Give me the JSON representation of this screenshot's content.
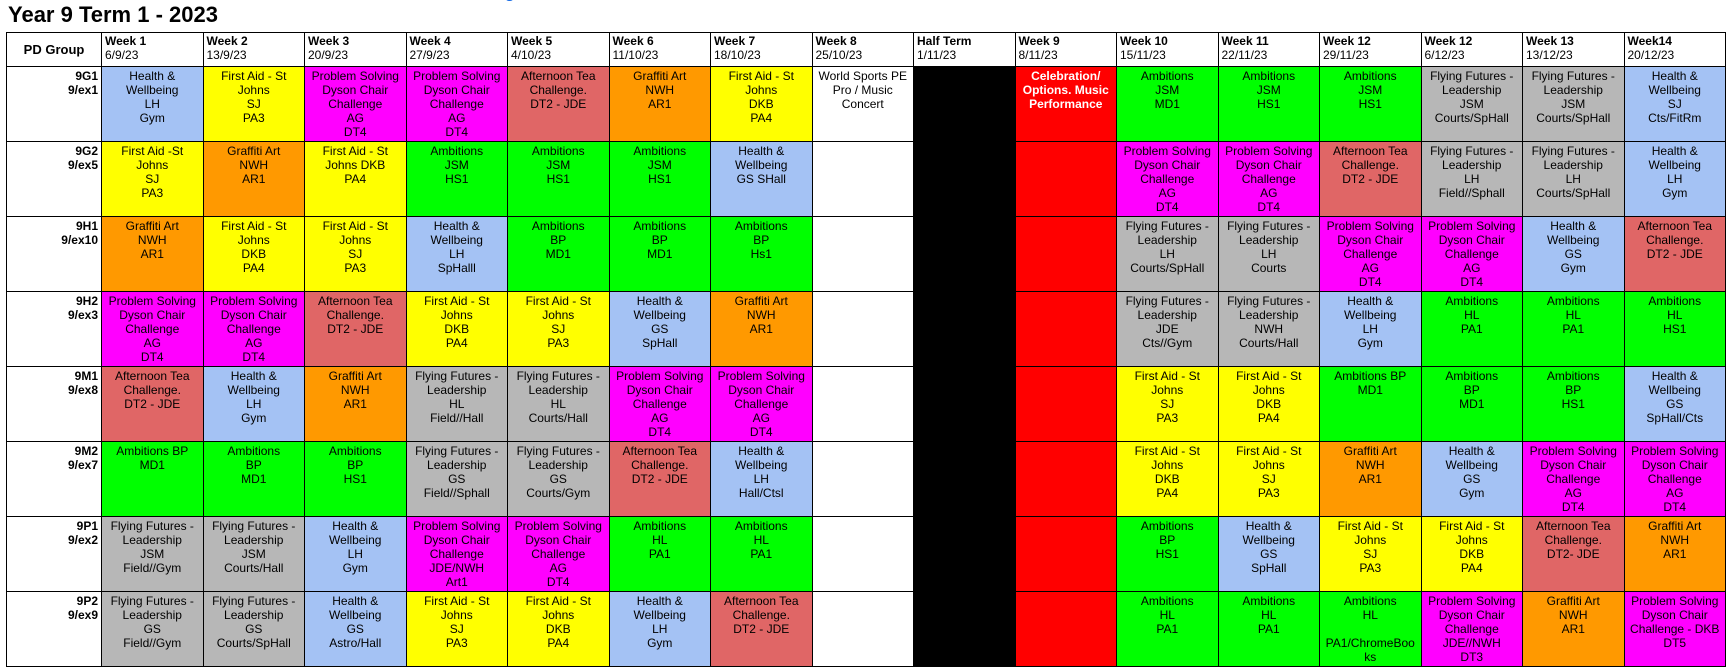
{
  "title": "Year 9 Term 1 - 2023",
  "colors": {
    "blue": "#a4c2f4",
    "yellow": "#ffff00",
    "magenta": "#ff00ff",
    "salmon": "#e06666",
    "orange": "#ff9900",
    "green": "#00ff00",
    "grey": "#b7b7b7",
    "black": "#000000",
    "red": "#ff0000",
    "white": "#ffffff"
  },
  "header": {
    "group_label": "PD Group",
    "weeks": [
      {
        "week": "Week 1",
        "date": "6/9/23"
      },
      {
        "week": "Week 2",
        "date": "13/9/23"
      },
      {
        "week": "Week 3",
        "date": "20/9/23"
      },
      {
        "week": "Week 4",
        "date": "27/9/23"
      },
      {
        "week": "Week 5",
        "date": "4/10/23"
      },
      {
        "week": "Week 6",
        "date": "11/10/23"
      },
      {
        "week": "Week 7",
        "date": "18/10/23"
      },
      {
        "week": "Week 8",
        "date": "25/10/23"
      },
      {
        "week": "Half Term",
        "date": "1/11/23"
      },
      {
        "week": "Week 9",
        "date": "8/11/23"
      },
      {
        "week": "Week 10",
        "date": "15/11/23"
      },
      {
        "week": "Week 11",
        "date": "22/11/23"
      },
      {
        "week": "Week 12",
        "date": "29/11/23"
      },
      {
        "week": "Week 12",
        "date": "6/12/23"
      },
      {
        "week": "Week 13",
        "date": "13/12/23"
      },
      {
        "week": "Week14",
        "date": "20/12/23"
      }
    ]
  },
  "rows": [
    {
      "group": "9G1",
      "code": "9/ex1",
      "cells": [
        {
          "text": "Health &\nWellbeing\nLH\nGym",
          "color": "blue"
        },
        {
          "text": "First Aid - St\nJohns\nSJ\nPA3",
          "color": "yellow"
        },
        {
          "text": "Problem Solving\nDyson Chair\nChallenge\nAG\nDT4",
          "color": "magenta"
        },
        {
          "text": "Problem Solving\nDyson Chair\nChallenge\nAG\nDT4",
          "color": "magenta"
        },
        {
          "text": "Afternoon Tea\nChallenge.\nDT2 - JDE",
          "color": "salmon"
        },
        {
          "text": "Graffiti Art\nNWH\nAR1",
          "color": "orange"
        },
        {
          "text": "First Aid - St\nJohns\nDKB\nPA4",
          "color": "yellow"
        },
        {
          "text": "World Sports PE\nPro / Music\nConcert",
          "color": "white"
        },
        {
          "text": "",
          "color": "black"
        },
        {
          "text": "Celebration/\nOptions. Music\nPerformance",
          "color": "red"
        },
        {
          "text": "Ambitions\nJSM\nMD1",
          "color": "green"
        },
        {
          "text": "Ambitions\nJSM\nHS1",
          "color": "green"
        },
        {
          "text": "Ambitions\nJSM\nHS1",
          "color": "green"
        },
        {
          "text": "Flying Futures -\nLeadership\nJSM\nCourts/SpHall",
          "color": "grey"
        },
        {
          "text": "Flying Futures -\nLeadership\nJSM\nCourts/SpHall",
          "color": "grey"
        },
        {
          "text": "Health &\nWellbeing\nSJ\nCts/FitRm",
          "color": "blue"
        }
      ]
    },
    {
      "group": "9G2",
      "code": "9/ex5",
      "cells": [
        {
          "text": "First Aid -St\nJohns\nSJ\nPA3",
          "color": "yellow"
        },
        {
          "text": "Graffiti Art\nNWH\nAR1",
          "color": "orange"
        },
        {
          "text": "First Aid - St\nJohns DKB\nPA4",
          "color": "yellow"
        },
        {
          "text": "Ambitions\nJSM\nHS1",
          "color": "green"
        },
        {
          "text": "Ambitions\nJSM\nHS1",
          "color": "green"
        },
        {
          "text": "Ambitions\nJSM\nHS1",
          "color": "green"
        },
        {
          "text": "Health &\nWellbeing\nGS SHall",
          "color": "blue"
        },
        {
          "text": "",
          "color": "white"
        },
        {
          "text": "",
          "color": "black"
        },
        {
          "text": "",
          "color": "red"
        },
        {
          "text": "Problem Solving\nDyson Chair\nChallenge\nAG\nDT4",
          "color": "magenta"
        },
        {
          "text": "Problem Solving\nDyson Chair\nChallenge\nAG\nDT4",
          "color": "magenta"
        },
        {
          "text": "Afternoon Tea\nChallenge.\nDT2 - JDE",
          "color": "salmon"
        },
        {
          "text": "Flying Futures -\nLeadership\nLH\nField//Sphall",
          "color": "grey"
        },
        {
          "text": "Flying Futures -\nLeadership\nLH\nCourts/SpHall",
          "color": "grey"
        },
        {
          "text": "Health &\nWellbeing\nLH\nGym",
          "color": "blue"
        }
      ]
    },
    {
      "group": "9H1",
      "code": "9/ex10",
      "cells": [
        {
          "text": "Graffiti Art\nNWH\nAR1",
          "color": "orange"
        },
        {
          "text": "First Aid - St\nJohns\nDKB\nPA4",
          "color": "yellow"
        },
        {
          "text": "First Aid - St\nJohns\nSJ\nPA3",
          "color": "yellow"
        },
        {
          "text": "Health &\nWellbeing\nLH\nSpHalll",
          "color": "blue"
        },
        {
          "text": "Ambitions\nBP\nMD1",
          "color": "green"
        },
        {
          "text": "Ambitions\nBP\nMD1",
          "color": "green"
        },
        {
          "text": "Ambitions\nBP\nHs1",
          "color": "green"
        },
        {
          "text": "",
          "color": "white"
        },
        {
          "text": "",
          "color": "black"
        },
        {
          "text": "",
          "color": "red"
        },
        {
          "text": "Flying Futures -\nLeadership\nLH\nCourts/SpHall",
          "color": "grey"
        },
        {
          "text": "Flying Futures -\nLeadership\nLH\nCourts",
          "color": "grey"
        },
        {
          "text": "Problem Solving\nDyson Chair\nChallenge\nAG\nDT4",
          "color": "magenta"
        },
        {
          "text": "Problem Solving\nDyson Chair\nChallenge\nAG\nDT4",
          "color": "magenta"
        },
        {
          "text": "Health &\nWellbeing\nGS\nGym",
          "color": "blue"
        },
        {
          "text": "Afternoon Tea\nChallenge.\nDT2 - JDE",
          "color": "salmon"
        }
      ]
    },
    {
      "group": "9H2",
      "code": "9/ex3",
      "cells": [
        {
          "text": "Problem Solving\nDyson Chair\nChallenge\nAG\nDT4",
          "color": "magenta"
        },
        {
          "text": "Problem Solving\nDyson Chair\nChallenge\nAG\nDT4",
          "color": "magenta"
        },
        {
          "text": "Afternoon Tea\nChallenge.\nDT2 - JDE",
          "color": "salmon"
        },
        {
          "text": "First Aid - St\nJohns\nDKB\nPA4",
          "color": "yellow"
        },
        {
          "text": "First Aid - St\nJohns\nSJ\nPA3",
          "color": "yellow"
        },
        {
          "text": "Health &\nWellbeing\nGS\nSpHall",
          "color": "blue"
        },
        {
          "text": "Graffiti Art\nNWH\nAR1",
          "color": "orange"
        },
        {
          "text": "",
          "color": "white"
        },
        {
          "text": "",
          "color": "black"
        },
        {
          "text": "",
          "color": "red"
        },
        {
          "text": "Flying Futures -\nLeadership\nJDE\nCts//Gym",
          "color": "grey"
        },
        {
          "text": "Flying Futures -\nLeadership\nNWH\nCourts/Hall",
          "color": "grey"
        },
        {
          "text": "Health &\nWellbeing\nLH\nGym",
          "color": "blue"
        },
        {
          "text": "Ambitions\nHL\nPA1",
          "color": "green"
        },
        {
          "text": "Ambitions\nHL\nPA1",
          "color": "green"
        },
        {
          "text": "Ambitions\nHL\nHS1",
          "color": "green"
        }
      ]
    },
    {
      "group": "9M1",
      "code": "9/ex8",
      "cells": [
        {
          "text": "Afternoon Tea\nChallenge.\nDT2 - JDE",
          "color": "salmon"
        },
        {
          "text": "Health &\nWellbeing\nLH\nGym",
          "color": "blue"
        },
        {
          "text": "Graffiti Art\nNWH\nAR1",
          "color": "orange"
        },
        {
          "text": "Flying Futures -\nLeadership\nHL\nField//Hall",
          "color": "grey"
        },
        {
          "text": "Flying Futures -\nLeadership\nHL\nCourts/Hall",
          "color": "grey"
        },
        {
          "text": "Problem Solving\nDyson Chair\nChallenge\nAG\nDT4",
          "color": "magenta"
        },
        {
          "text": "Problem Solving\nDyson Chair\nChallenge\nAG\nDT4",
          "color": "magenta"
        },
        {
          "text": "",
          "color": "white"
        },
        {
          "text": "",
          "color": "black"
        },
        {
          "text": "",
          "color": "red"
        },
        {
          "text": "First Aid - St\nJohns\nSJ\nPA3",
          "color": "yellow"
        },
        {
          "text": "First Aid - St\nJohns\nDKB\nPA4",
          "color": "yellow"
        },
        {
          "text": "Ambitions BP\nMD1",
          "color": "green"
        },
        {
          "text": "Ambitions\nBP\nMD1",
          "color": "green"
        },
        {
          "text": "Ambitions\nBP\nHS1",
          "color": "green"
        },
        {
          "text": "Health &\nWellbeing\nGS\nSpHall/Cts",
          "color": "blue"
        }
      ]
    },
    {
      "group": "9M2",
      "code": "9/ex7",
      "cells": [
        {
          "text": "Ambitions BP\nMD1",
          "color": "green"
        },
        {
          "text": "Ambitions\nBP\nMD1",
          "color": "green"
        },
        {
          "text": "Ambitions\nBP\nHS1",
          "color": "green"
        },
        {
          "text": "Flying Futures -\nLeadership\nGS\nField//Sphall",
          "color": "grey"
        },
        {
          "text": "Flying Futures -\nLeadership\nGS\nCourts/Gym",
          "color": "grey"
        },
        {
          "text": "Afternoon Tea\nChallenge.\nDT2 - JDE",
          "color": "salmon"
        },
        {
          "text": "Health &\nWellbeing\nLH\nHall/Ctsl",
          "color": "blue"
        },
        {
          "text": "",
          "color": "white"
        },
        {
          "text": "",
          "color": "black"
        },
        {
          "text": "",
          "color": "red"
        },
        {
          "text": "First Aid - St\nJohns\nDKB\nPA4",
          "color": "yellow"
        },
        {
          "text": "First Aid - St\nJohns\nSJ\nPA3",
          "color": "yellow"
        },
        {
          "text": "Graffiti Art\nNWH\nAR1",
          "color": "orange"
        },
        {
          "text": "Health &\nWellbeing\nGS\nGym",
          "color": "blue"
        },
        {
          "text": "Problem Solving\nDyson Chair\nChallenge\nAG\nDT4",
          "color": "magenta"
        },
        {
          "text": "Problem Solving\nDyson Chair\nChallenge\nAG\nDT4",
          "color": "magenta"
        }
      ]
    },
    {
      "group": "9P1",
      "code": "9/ex2",
      "cells": [
        {
          "text": "Flying Futures -\nLeadership\nJSM\nField//Gym",
          "color": "grey"
        },
        {
          "text": "Flying Futures -\nLeadership\nJSM\nCourts/Hall",
          "color": "grey"
        },
        {
          "text": "Health &\nWellbeing\nLH\nGym",
          "color": "blue"
        },
        {
          "text": "Problem Solving\nDyson Chair\nChallenge\nJDE/NWH\nArt1",
          "color": "magenta"
        },
        {
          "text": "Problem Solving\nDyson Chair\nChallenge\nAG\nDT4",
          "color": "magenta"
        },
        {
          "text": "Ambitions\nHL\nPA1",
          "color": "green"
        },
        {
          "text": "Ambitions\nHL\nPA1",
          "color": "green"
        },
        {
          "text": "",
          "color": "white"
        },
        {
          "text": "",
          "color": "black"
        },
        {
          "text": "",
          "color": "red"
        },
        {
          "text": "Ambitions\nBP\nHS1",
          "color": "green"
        },
        {
          "text": "Health &\nWellbeing\nGS\nSpHall",
          "color": "blue"
        },
        {
          "text": "First Aid - St\nJohns\nSJ\nPA3",
          "color": "yellow"
        },
        {
          "text": "First Aid - St\nJohns\nDKB\nPA4",
          "color": "yellow"
        },
        {
          "text": "Afternoon Tea\nChallenge.\nDT2- JDE",
          "color": "salmon"
        },
        {
          "text": "Graffiti Art\nNWH\nAR1",
          "color": "orange"
        }
      ]
    },
    {
      "group": "9P2",
      "code": "9/ex9",
      "cells": [
        {
          "text": "Flying Futures -\nLeadership\nGS\nField//Gym",
          "color": "grey"
        },
        {
          "text": "Flying Futures -\nLeadership\nGS\nCourts/SpHall",
          "color": "grey"
        },
        {
          "text": "Health &\nWellbeing\nGS\nAstro/Hall",
          "color": "blue"
        },
        {
          "text": "First Aid - St\nJohns\nSJ\nPA3",
          "color": "yellow"
        },
        {
          "text": "First Aid - St\nJohns\nDKB\nPA4",
          "color": "yellow"
        },
        {
          "text": "Health &\nWellbeing\nLH\nGym",
          "color": "blue"
        },
        {
          "text": "Afternoon Tea\nChallenge.\nDT2 - JDE",
          "color": "salmon"
        },
        {
          "text": "",
          "color": "white"
        },
        {
          "text": "",
          "color": "black"
        },
        {
          "text": "",
          "color": "red"
        },
        {
          "text": "Ambitions\nHL\nPA1",
          "color": "green"
        },
        {
          "text": "Ambitions\nHL\nPA1",
          "color": "green"
        },
        {
          "text": "Ambitions\nHL\n\nPA1/ChromeBoo\nks",
          "color": "green"
        },
        {
          "text": "Problem Solving\nDyson Chair\nChallenge\nJDE//NWH\nDT3",
          "color": "magenta"
        },
        {
          "text": "Graffiti Art\nNWH\nAR1",
          "color": "orange"
        },
        {
          "text": "Problem Solving\nDyson Chair\nChallenge - DKB\nDT5",
          "color": "magenta"
        }
      ]
    }
  ]
}
